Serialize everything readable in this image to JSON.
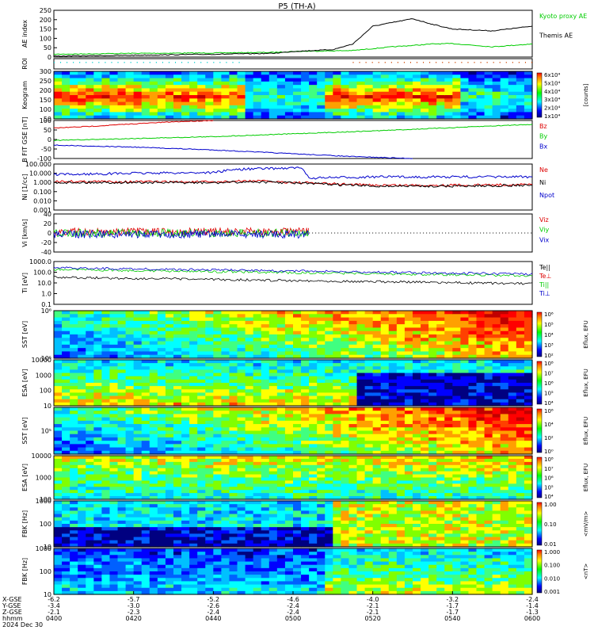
{
  "title": "P5 (TH-A)",
  "footer": {
    "row_labels": [
      "X-GSE",
      "Y-GSE",
      "Z-GSE",
      "hhmm",
      "2024 Dec 30"
    ],
    "columns": [
      {
        "x": "-6.2",
        "y": "-3.4",
        "z": "-2.1",
        "t": "0400"
      },
      {
        "x": "-5.7",
        "y": "-3.0",
        "z": "-2.3",
        "t": "0420"
      },
      {
        "x": "-5.2",
        "y": "-2.6",
        "z": "-2.4",
        "t": "0440"
      },
      {
        "x": "-4.6",
        "y": "-2.4",
        "z": "-2.4",
        "t": "0500"
      },
      {
        "x": "-4.0",
        "y": "-2.1",
        "z": "-2.1",
        "t": "0520"
      },
      {
        "x": "-3.2",
        "y": "-1.7",
        "z": "-1.7",
        "t": "0540"
      },
      {
        "x": "-2.4",
        "y": "-1.4",
        "z": "-1.3",
        "t": "0600"
      }
    ]
  },
  "chart_data": [
    {
      "type": "line",
      "ylabel": "AE index",
      "ylim": [
        0,
        250
      ],
      "yticks": [
        "0",
        "50",
        "100",
        "150",
        "200",
        "250"
      ],
      "series": [
        {
          "name": "Kyoto proxy AE",
          "color": "#00cc00",
          "x": [
            0,
            20,
            40,
            55,
            60,
            75,
            80,
            85,
            90,
            95,
            100,
            110,
            120
          ],
          "values": [
            15,
            20,
            22,
            25,
            30,
            35,
            45,
            55,
            62,
            70,
            72,
            55,
            70
          ]
        },
        {
          "name": "Themis AE",
          "color": "#000000",
          "x": [
            0,
            20,
            40,
            55,
            60,
            70,
            75,
            80,
            85,
            90,
            95,
            100,
            110,
            120
          ],
          "values": [
            5,
            10,
            15,
            20,
            30,
            40,
            70,
            165,
            185,
            205,
            175,
            150,
            140,
            165
          ]
        }
      ]
    },
    {
      "type": "strip",
      "ylabel": "ROI",
      "marks": [
        {
          "color": "#00cccc",
          "from": 0,
          "to": 47
        },
        {
          "color": "#cc4400",
          "from": 75,
          "to": 120
        }
      ]
    },
    {
      "type": "heatmap",
      "ylabel": "Keogram",
      "yticks": [
        "50",
        "100",
        "150",
        "200",
        "250",
        "300"
      ],
      "colorbar": {
        "label": "[counts]",
        "ticks": [
          "1x10⁴",
          "2x10⁴",
          "3x10⁴",
          "4x10⁴",
          "5x10⁴",
          "6x10⁴"
        ]
      }
    },
    {
      "type": "line",
      "ylabel": "B FIT GSE [nT]",
      "ylim": [
        -100,
        100
      ],
      "yticks": [
        "-100",
        "-50",
        "0",
        "50",
        "100"
      ],
      "series": [
        {
          "name": "Bz",
          "color": "#dd0000",
          "x": [
            0,
            10,
            20,
            30,
            40
          ],
          "values": [
            60,
            70,
            82,
            93,
            100
          ]
        },
        {
          "name": "By",
          "color": "#00cc00",
          "x": [
            0,
            20,
            40,
            60,
            80,
            100,
            120
          ],
          "values": [
            -5,
            5,
            15,
            30,
            45,
            62,
            80
          ]
        },
        {
          "name": "Bx",
          "color": "#0000cc",
          "x": [
            0,
            20,
            40,
            60,
            75,
            90
          ],
          "values": [
            -30,
            -40,
            -55,
            -75,
            -90,
            -100
          ]
        }
      ]
    },
    {
      "type": "line",
      "ylabel": "Ni [1/cc]",
      "log": true,
      "yticks": [
        "0.001",
        "0.010",
        "0.100",
        "1.000",
        "10.000",
        "100.000"
      ],
      "series": [
        {
          "name": "Ne",
          "color": "#dd0000",
          "x": [
            0,
            20,
            40,
            50,
            60,
            80,
            100,
            120
          ],
          "values": [
            1.3,
            1.2,
            1.1,
            1.5,
            1.0,
            0.5,
            0.5,
            0.6
          ]
        },
        {
          "name": "Ni",
          "color": "#000000",
          "x": [
            0,
            20,
            40,
            50,
            60,
            80,
            100,
            120
          ],
          "values": [
            1.0,
            1.0,
            0.9,
            1.2,
            0.9,
            0.4,
            0.4,
            0.5
          ]
        },
        {
          "name": "Npot",
          "color": "#0000cc",
          "x": [
            0,
            20,
            40,
            45,
            50,
            62,
            64,
            80,
            100,
            120
          ],
          "values": [
            7,
            10,
            12,
            25,
            30,
            40,
            3,
            4,
            4,
            4
          ]
        }
      ]
    },
    {
      "type": "line",
      "ylabel": "Vi [km/s]",
      "ylim": [
        -40,
        40
      ],
      "yticks": [
        "-40",
        "-20",
        "0",
        "20",
        "40"
      ],
      "series": [
        {
          "name": "Viz",
          "color": "#dd0000"
        },
        {
          "name": "Viy",
          "color": "#00cc00"
        },
        {
          "name": "Vix",
          "color": "#0000cc"
        }
      ],
      "end_x": 64
    },
    {
      "type": "line",
      "ylabel": "Ti [eV]",
      "log": true,
      "yticks": [
        "0.1",
        "1.0",
        "10.0",
        "100.0",
        "1000.0"
      ],
      "series": [
        {
          "name": "Te||",
          "color": "#000000"
        },
        {
          "name": "Te⊥",
          "color": "#dd0000"
        },
        {
          "name": "Ti||",
          "color": "#00cc00"
        },
        {
          "name": "Ti⊥",
          "color": "#0000cc"
        }
      ]
    },
    {
      "type": "heatmap",
      "ylabel": "SST [eV]",
      "yticks": [
        "10⁵",
        "10⁶"
      ],
      "colorbar": {
        "label": "Eflux, EFU",
        "ticks": [
          "10²",
          "10³",
          "10⁴",
          "10⁵",
          "10⁶"
        ]
      }
    },
    {
      "type": "heatmap",
      "ylabel": "ESA [eV]",
      "yticks": [
        "10",
        "100",
        "1000",
        "10000"
      ],
      "colorbar": {
        "label": "Eflux, EFU",
        "ticks": [
          "10⁴",
          "10⁵",
          "10⁶",
          "10⁷",
          "10⁸"
        ]
      }
    },
    {
      "type": "heatmap",
      "ylabel": "SST [eV]",
      "yticks": [
        "10⁵"
      ],
      "colorbar": {
        "label": "Eflux, EFU",
        "ticks": [
          "10⁰",
          "10²",
          "10⁴",
          "10⁶"
        ]
      }
    },
    {
      "type": "heatmap",
      "ylabel": "ESA [eV]",
      "yticks": [
        "100",
        "1000",
        "10000"
      ],
      "colorbar": {
        "label": "Eflux, EFU",
        "ticks": [
          "10⁴",
          "10⁵",
          "10⁶",
          "10⁷",
          "10⁸"
        ]
      }
    },
    {
      "type": "heatmap",
      "ylabel": "FBK [Hz]",
      "yticks": [
        "10",
        "100",
        "1000"
      ],
      "colorbar": {
        "label": "<mV/m>",
        "ticks": [
          "0.01",
          "0.10",
          "1.00"
        ]
      }
    },
    {
      "type": "heatmap",
      "ylabel": "FBK [Hz]",
      "yticks": [
        "10",
        "100",
        "1000"
      ],
      "colorbar": {
        "label": "<nT>",
        "ticks": [
          "0.001",
          "0.010",
          "0.100",
          "1.000"
        ]
      }
    }
  ]
}
